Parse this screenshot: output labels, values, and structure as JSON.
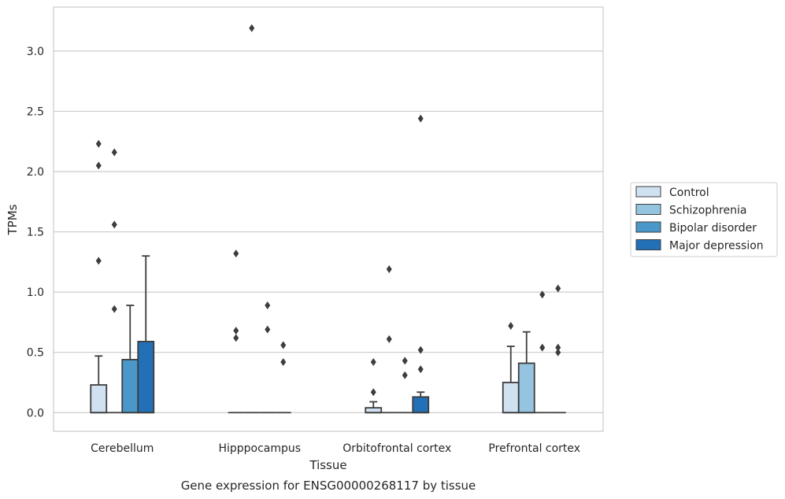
{
  "chart_data": {
    "type": "box",
    "title": "",
    "caption": "Gene expression for ENSG00000268117 by tissue",
    "xlabel": "Tissue",
    "ylabel": "TPMs",
    "ylim": [
      -0.155,
      3.365
    ],
    "yticks": [
      0.0,
      0.5,
      1.0,
      1.5,
      2.0,
      2.5,
      3.0
    ],
    "ytick_labels": [
      "0.0",
      "0.5",
      "1.0",
      "1.5",
      "2.0",
      "2.5",
      "3.0"
    ],
    "grid": "horizontal",
    "legend_position": "right",
    "categories": [
      "Cerebellum",
      "Hipppocampus",
      "Orbitofrontal cortex",
      "Prefrontal cortex"
    ],
    "series": [
      {
        "name": "Control",
        "color": "#d0e1f2",
        "boxes": [
          {
            "q1": 0.0,
            "median": 0.0,
            "q3": 0.23,
            "whisker_low": 0.0,
            "whisker_high": 0.47,
            "outliers": [
              1.26,
              2.05,
              2.23
            ]
          },
          {
            "q1": 0.0,
            "median": 0.0,
            "q3": 0.0,
            "whisker_low": 0.0,
            "whisker_high": 0.0,
            "outliers": [
              0.62,
              0.68,
              1.32
            ]
          },
          {
            "q1": 0.0,
            "median": 0.0,
            "q3": 0.04,
            "whisker_low": 0.0,
            "whisker_high": 0.09,
            "outliers": [
              0.17,
              0.42
            ]
          },
          {
            "q1": 0.0,
            "median": 0.0,
            "q3": 0.25,
            "whisker_low": 0.0,
            "whisker_high": 0.55,
            "outliers": [
              0.72
            ]
          }
        ]
      },
      {
        "name": "Schizophrenia",
        "color": "#94c4df",
        "boxes": [
          {
            "q1": 0.0,
            "median": 0.0,
            "q3": 0.0,
            "whisker_low": 0.0,
            "whisker_high": 0.0,
            "outliers": [
              0.86,
              1.56,
              2.16
            ]
          },
          {
            "q1": 0.0,
            "median": 0.0,
            "q3": 0.0,
            "whisker_low": 0.0,
            "whisker_high": 0.0,
            "outliers": [
              3.19
            ]
          },
          {
            "q1": 0.0,
            "median": 0.0,
            "q3": 0.0,
            "whisker_low": 0.0,
            "whisker_high": 0.0,
            "outliers": [
              0.61,
              1.19
            ]
          },
          {
            "q1": 0.0,
            "median": 0.0,
            "q3": 0.41,
            "whisker_low": 0.0,
            "whisker_high": 0.67,
            "outliers": []
          }
        ]
      },
      {
        "name": "Bipolar disorder",
        "color": "#4a98c9",
        "boxes": [
          {
            "q1": 0.0,
            "median": 0.0,
            "q3": 0.44,
            "whisker_low": 0.0,
            "whisker_high": 0.89,
            "outliers": []
          },
          {
            "q1": 0.0,
            "median": 0.0,
            "q3": 0.0,
            "whisker_low": 0.0,
            "whisker_high": 0.0,
            "outliers": [
              0.69,
              0.89
            ]
          },
          {
            "q1": 0.0,
            "median": 0.0,
            "q3": 0.0,
            "whisker_low": 0.0,
            "whisker_high": 0.0,
            "outliers": [
              0.31,
              0.43
            ]
          },
          {
            "q1": 0.0,
            "median": 0.0,
            "q3": 0.0,
            "whisker_low": 0.0,
            "whisker_high": 0.0,
            "outliers": [
              0.54,
              0.98
            ]
          }
        ]
      },
      {
        "name": "Major depression",
        "color": "#2270b5",
        "boxes": [
          {
            "q1": 0.0,
            "median": 0.0,
            "q3": 0.59,
            "whisker_low": 0.0,
            "whisker_high": 1.3,
            "outliers": []
          },
          {
            "q1": 0.0,
            "median": 0.0,
            "q3": 0.0,
            "whisker_low": 0.0,
            "whisker_high": 0.0,
            "outliers": [
              0.42,
              0.56
            ]
          },
          {
            "q1": 0.0,
            "median": 0.0,
            "q3": 0.13,
            "whisker_low": 0.0,
            "whisker_high": 0.17,
            "outliers": [
              0.36,
              0.52,
              2.44
            ]
          },
          {
            "q1": 0.0,
            "median": 0.0,
            "q3": 0.0,
            "whisker_low": 0.0,
            "whisker_high": 0.0,
            "outliers": [
              0.5,
              0.54,
              1.03
            ]
          }
        ]
      }
    ],
    "colors": {
      "line": "#3d3d3d",
      "grid": "#cccccc",
      "frame": "#cccccc",
      "outlier": "#3d3d3d"
    }
  }
}
